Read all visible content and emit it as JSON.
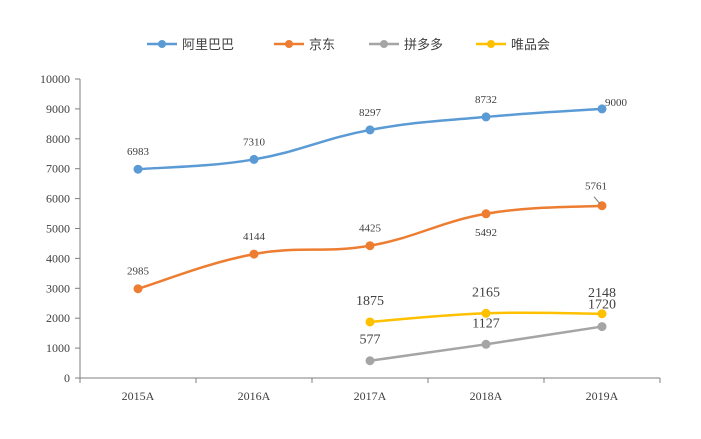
{
  "chart_data": {
    "type": "line",
    "categories": [
      "2015A",
      "2016A",
      "2017A",
      "2018A",
      "2019A"
    ],
    "ylim": [
      0,
      10000
    ],
    "yticks": [
      "0",
      "1000",
      "2000",
      "3000",
      "4000",
      "5000",
      "6000",
      "7000",
      "8000",
      "9000",
      "10000"
    ],
    "grid": false,
    "legend_position": "top",
    "series": [
      {
        "name": "阿里巴巴",
        "color": "#5B9BD5",
        "values": [
          6983,
          7310,
          8297,
          8732,
          9000
        ],
        "labels": [
          "6983",
          "7310",
          "8297",
          "8732",
          "9000"
        ]
      },
      {
        "name": "京东",
        "color": "#ED7D31",
        "values": [
          2985,
          4144,
          4425,
          5492,
          5761
        ],
        "labels": [
          "2985",
          "4144",
          "4425",
          "5492",
          "5761"
        ]
      },
      {
        "name": "拼多多",
        "color": "#A5A5A5",
        "values": [
          null,
          null,
          577,
          1127,
          1720
        ],
        "labels": [
          "",
          "",
          "577",
          "1127",
          "1720"
        ]
      },
      {
        "name": "唯品会",
        "color": "#FFC000",
        "values": [
          null,
          null,
          1875,
          2165,
          2148
        ],
        "labels": [
          "",
          "",
          "1875",
          "2165",
          "2148"
        ]
      }
    ]
  }
}
